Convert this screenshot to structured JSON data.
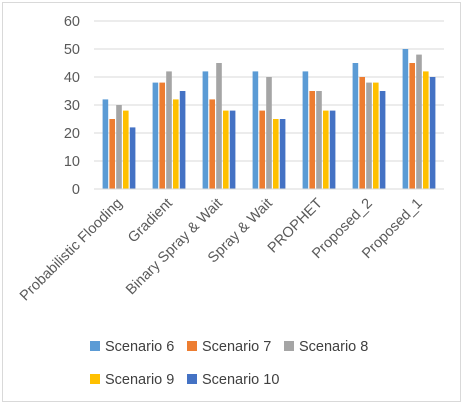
{
  "chart_data": {
    "type": "bar",
    "title": "",
    "xlabel": "",
    "ylabel": "",
    "ylim": [
      0,
      60
    ],
    "yticks": [
      0,
      10,
      20,
      30,
      40,
      50,
      60
    ],
    "grid": "horizontal",
    "legend_position": "bottom",
    "categories": [
      "Probabilistic Flooding",
      "Gradient",
      "Binary Spray & Wait",
      "Spray & Wait",
      "PROPHET",
      "Proposed_2",
      "Proposed_1"
    ],
    "series": [
      {
        "name": "Scenario 6",
        "color": "#5b9bd5",
        "values": [
          32,
          38,
          42,
          42,
          42,
          45,
          50
        ]
      },
      {
        "name": "Scenario 7",
        "color": "#ed7d31",
        "values": [
          25,
          38,
          32,
          28,
          35,
          40,
          45
        ]
      },
      {
        "name": "Scenario 8",
        "color": "#a5a5a5",
        "values": [
          30,
          42,
          45,
          40,
          35,
          38,
          48
        ]
      },
      {
        "name": "Scenario 9",
        "color": "#ffc000",
        "values": [
          28,
          32,
          28,
          25,
          28,
          38,
          42
        ]
      },
      {
        "name": "Scenario 10",
        "color": "#4472c4",
        "values": [
          22,
          35,
          28,
          25,
          28,
          35,
          40
        ]
      }
    ]
  }
}
